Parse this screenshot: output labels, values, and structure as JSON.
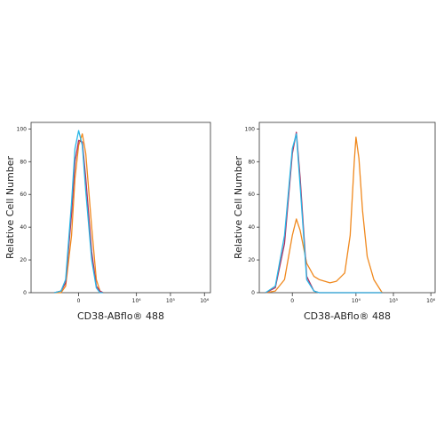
{
  "chart_data": [
    {
      "type": "line",
      "x_label": "CD38-ABflo® 488",
      "y_label": "Relative Cell Number",
      "xscale": "biexponential",
      "xlim": [
        -5000,
        1500000
      ],
      "ylim": [
        0,
        104
      ],
      "xticks": [
        0,
        {
          "value": 10000,
          "label": "10⁴"
        },
        {
          "value": 100000,
          "label": "10⁵"
        },
        {
          "value": 1000000,
          "label": "10⁶"
        }
      ],
      "yticks": [
        0,
        20,
        40,
        60,
        80,
        100
      ],
      "x": [
        -1000,
        -600,
        -400,
        -200,
        -100,
        0,
        100,
        200,
        400,
        600,
        800,
        1000
      ],
      "series": [
        {
          "color": "#f0891e",
          "values": [
            0,
            0,
            4,
            35,
            70,
            90,
            97,
            85,
            40,
            8,
            1,
            0
          ]
        },
        {
          "color": "#b03060",
          "values": [
            0,
            1,
            6,
            48,
            80,
            93,
            92,
            70,
            25,
            4,
            1,
            0
          ]
        },
        {
          "color": "#29b6e6",
          "values": [
            0,
            1,
            8,
            55,
            88,
            99,
            90,
            62,
            20,
            3,
            0,
            0
          ]
        }
      ]
    },
    {
      "type": "line",
      "x_label": "CD38-ABflo® 488",
      "y_label": "Relative Cell Number",
      "xscale": "biexponential",
      "xlim": [
        -1500,
        1300000
      ],
      "ylim": [
        0,
        104
      ],
      "xticks": [
        0,
        {
          "value": 10000,
          "label": "10⁴"
        },
        {
          "value": 100000,
          "label": "10⁵"
        },
        {
          "value": 1000000,
          "label": "10⁶"
        }
      ],
      "yticks": [
        0,
        20,
        40,
        60,
        80,
        100
      ],
      "x": [
        -1000,
        -500,
        -200,
        0,
        100,
        200,
        400,
        700,
        1000,
        2000,
        3000,
        5000,
        7000,
        9000,
        10000,
        12000,
        15000,
        20000,
        30000,
        50000
      ],
      "series": [
        {
          "color": "#f0891e",
          "values": [
            0,
            1,
            8,
            35,
            45,
            38,
            18,
            10,
            8,
            6,
            7,
            12,
            35,
            80,
            95,
            82,
            50,
            22,
            8,
            0
          ]
        },
        {
          "color": "#b03060",
          "values": [
            0,
            3,
            30,
            85,
            98,
            70,
            10,
            1,
            0,
            0,
            0,
            0,
            0,
            0,
            0,
            0,
            0,
            0,
            0,
            0
          ]
        },
        {
          "color": "#29b6e6",
          "values": [
            0,
            4,
            35,
            88,
            97,
            65,
            8,
            1,
            0,
            0,
            0,
            0,
            0,
            0,
            0,
            0,
            0,
            0,
            0,
            0
          ]
        }
      ]
    }
  ]
}
